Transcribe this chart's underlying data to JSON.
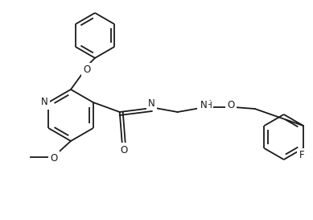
{
  "bg_color": "#ffffff",
  "line_color": "#1a1a1a",
  "line_width": 1.3,
  "font_size": 8.5,
  "figsize": [
    3.89,
    2.73
  ],
  "dpi": 100,
  "xlim": [
    0,
    389
  ],
  "ylim": [
    0,
    273
  ]
}
